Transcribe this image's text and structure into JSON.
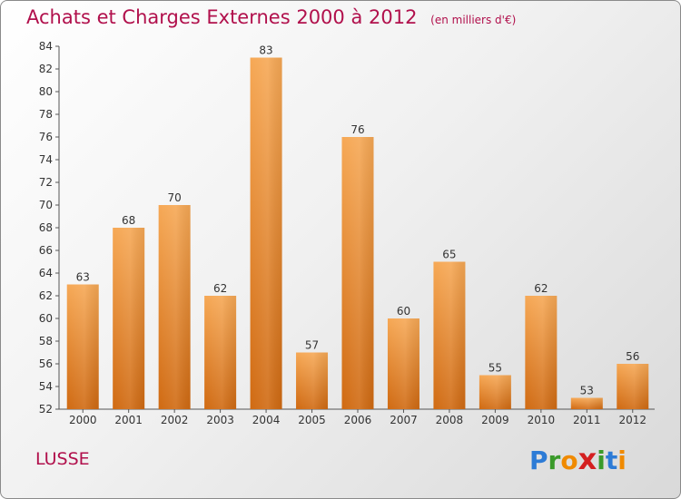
{
  "title": "Achats et Charges Externes 2000 à 2012",
  "subtitle": "(en milliers d'€)",
  "location": "LUSSE",
  "logo": {
    "letters": [
      "P",
      "r",
      "o",
      "x",
      "i",
      "t",
      "i"
    ],
    "colors": [
      "#2c7bd6",
      "#3a9a2a",
      "#f08a00",
      "#d42020",
      "#3a9a2a",
      "#2c7bd6",
      "#f08a00"
    ]
  },
  "colors": {
    "title": "#b1104c",
    "bar_top": "#f6a855",
    "bar_bottom": "#d06a12"
  },
  "chart_data": {
    "type": "bar",
    "title": "Achats et Charges Externes 2000 à 2012",
    "subtitle": "(en milliers d'€)",
    "categories": [
      "2000",
      "2001",
      "2002",
      "2003",
      "2004",
      "2005",
      "2006",
      "2007",
      "2008",
      "2009",
      "2010",
      "2011",
      "2012"
    ],
    "values": [
      63,
      68,
      70,
      62,
      83,
      57,
      76,
      60,
      65,
      55,
      62,
      53,
      56
    ],
    "ylim": [
      52,
      84
    ],
    "yticks": [
      52,
      54,
      56,
      58,
      60,
      62,
      64,
      66,
      68,
      70,
      72,
      74,
      76,
      78,
      80,
      82,
      84
    ],
    "grid": false,
    "xlabel": "",
    "ylabel": ""
  }
}
